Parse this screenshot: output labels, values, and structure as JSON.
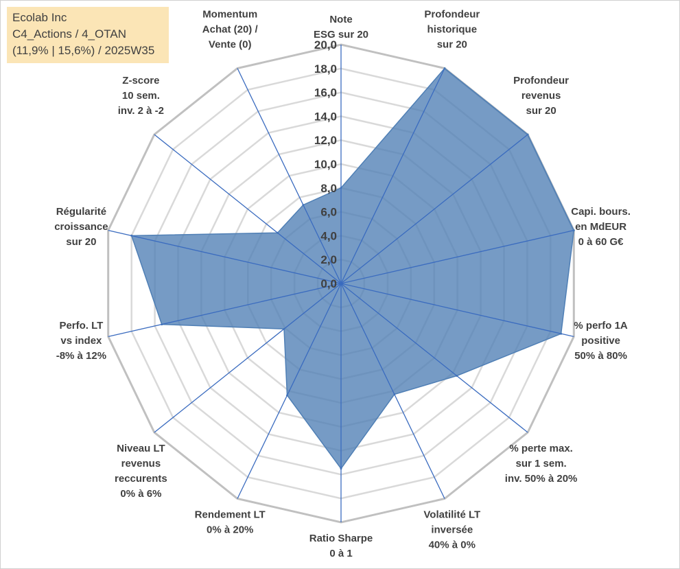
{
  "info_box": {
    "line1": "Ecolab Inc",
    "line2": "C4_Actions / 4_OTAN",
    "line3": "(11,9% | 15,6%) / 2025W35"
  },
  "colors": {
    "fill": "#4f7fb5",
    "spoke": "#3a6bbf",
    "grid_outer": "#c0c0c0",
    "grid_inner": "#d9d9d9",
    "text": "#404040",
    "info_bg": "#fbe5b6"
  },
  "chart_data": {
    "type": "radar",
    "rlim": [
      0,
      20
    ],
    "ticks": [
      "0,0",
      "2,0",
      "4,0",
      "6,0",
      "8,0",
      "10,0",
      "12,0",
      "14,0",
      "16,0",
      "18,0",
      "20,0"
    ],
    "axes": [
      {
        "label": [
          "Note",
          "ESG sur 20"
        ],
        "value": 8.0
      },
      {
        "label": [
          "Profondeur",
          "historique",
          "sur 20"
        ],
        "value": 20.0
      },
      {
        "label": [
          "Profondeur",
          "revenus",
          "sur 20"
        ],
        "value": 20.0
      },
      {
        "label": [
          "Capi. bours.",
          "en MdEUR",
          "0 à 60 G€"
        ],
        "value": 20.0
      },
      {
        "label": [
          "% perfo 1A",
          "positive",
          "50% à 80%"
        ],
        "value": 18.9
      },
      {
        "label": [
          "% perte max.",
          "sur 1 sem.",
          "inv. 50% à 20%"
        ],
        "value": 12.4
      },
      {
        "label": [
          "Volatilité LT",
          "inversée",
          "40% à 0%"
        ],
        "value": 10.3
      },
      {
        "label": [
          "Ratio Sharpe",
          "0 à 1"
        ],
        "value": 15.5
      },
      {
        "label": [
          "Rendement LT",
          "0% à 20%"
        ],
        "value": 10.4
      },
      {
        "label": [
          "Niveau LT",
          "revenus",
          "reccurents",
          "0% à 6%"
        ],
        "value": 6.1
      },
      {
        "label": [
          "Perfo. LT",
          "vs index",
          "-8% à 12%"
        ],
        "value": 15.4
      },
      {
        "label": [
          "Régularité",
          "croissance",
          "sur 20"
        ],
        "value": 18.0
      },
      {
        "label": [
          "Z-score",
          "10 sem.",
          "inv. 2 à -2"
        ],
        "value": 6.8
      },
      {
        "label": [
          "Momentum",
          "Achat (20) /",
          "Vente (0)"
        ],
        "value": 7.3
      }
    ]
  }
}
